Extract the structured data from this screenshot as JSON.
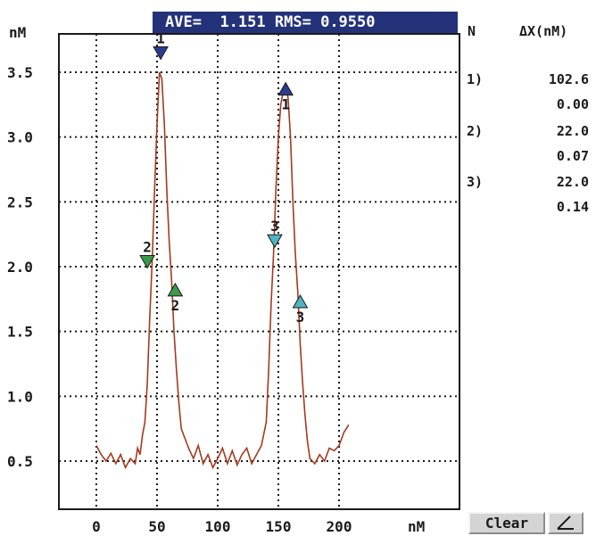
{
  "status": {
    "ave_label": "AVE=",
    "ave_value": "1.151",
    "rms_label": "RMS=",
    "rms_value": "0.9550"
  },
  "axes": {
    "y_unit": "nM",
    "x_unit": "nM",
    "y_ticks": [
      "3.5",
      "3.0",
      "2.5",
      "2.0",
      "1.5",
      "1.0",
      "0.5"
    ],
    "x_ticks": [
      "0",
      "50",
      "100",
      "150",
      "200"
    ]
  },
  "side_panel": {
    "n_header": "N",
    "dx_header": "ΔX(nM)",
    "rows": [
      {
        "n": "1)",
        "v1": "102.6",
        "v2": "0.00"
      },
      {
        "n": "2)",
        "v1": "22.0",
        "v2": "0.07"
      },
      {
        "n": "3)",
        "v1": "22.0",
        "v2": "0.14"
      }
    ]
  },
  "buttons": {
    "clear_label": "Clear",
    "angle_icon": "angle-icon"
  },
  "colors": {
    "trace": "#a33a20",
    "grid": "#1a1a1a",
    "header_bg": "#24327a",
    "marker_1": "#2b3b8f",
    "marker_2": "#3a9a4a",
    "marker_3": "#4fb3c2"
  },
  "chart_data": {
    "type": "line",
    "xlim": [
      0,
      210
    ],
    "ylim": [
      0.5,
      3.5
    ],
    "x": [
      0,
      4,
      8,
      12,
      16,
      20,
      24,
      28,
      32,
      34,
      36,
      38,
      40,
      42,
      44,
      46,
      48,
      50,
      52,
      54,
      56,
      58,
      60,
      62,
      64,
      66,
      68,
      70,
      72,
      76,
      80,
      84,
      88,
      92,
      96,
      100,
      104,
      108,
      112,
      116,
      120,
      124,
      128,
      132,
      136,
      140,
      142,
      144,
      146,
      148,
      150,
      152,
      154,
      156,
      158,
      160,
      162,
      164,
      166,
      168,
      170,
      172,
      174,
      176,
      180,
      184,
      188,
      192,
      196,
      200,
      204,
      208
    ],
    "y": [
      0.62,
      0.55,
      0.5,
      0.56,
      0.48,
      0.55,
      0.45,
      0.52,
      0.48,
      0.6,
      0.55,
      0.7,
      0.8,
      1.1,
      1.6,
      2.05,
      2.6,
      3.1,
      3.5,
      3.45,
      3.1,
      2.6,
      2.2,
      1.9,
      1.5,
      1.2,
      0.95,
      0.75,
      0.7,
      0.6,
      0.52,
      0.62,
      0.48,
      0.55,
      0.45,
      0.52,
      0.6,
      0.48,
      0.58,
      0.47,
      0.55,
      0.6,
      0.48,
      0.55,
      0.62,
      0.8,
      1.2,
      1.7,
      2.1,
      2.6,
      3.0,
      3.25,
      3.35,
      3.4,
      3.3,
      3.0,
      2.5,
      2.1,
      1.8,
      1.4,
      1.1,
      0.85,
      0.65,
      0.52,
      0.48,
      0.55,
      0.5,
      0.6,
      0.58,
      0.62,
      0.72,
      0.78
    ],
    "markers": [
      {
        "label": "1",
        "x": 53,
        "y": 3.6,
        "dir": "down",
        "color": "#2b3b8f"
      },
      {
        "label": "1",
        "x": 156,
        "y": 3.42,
        "dir": "up",
        "color": "#2b3b8f"
      },
      {
        "label": "2",
        "x": 42,
        "y": 1.99,
        "dir": "down",
        "color": "#3a9a4a"
      },
      {
        "label": "2",
        "x": 65,
        "y": 1.87,
        "dir": "up",
        "color": "#3a9a4a"
      },
      {
        "label": "3",
        "x": 147,
        "y": 2.15,
        "dir": "down",
        "color": "#4fb3c2"
      },
      {
        "label": "3",
        "x": 168,
        "y": 1.78,
        "dir": "up",
        "color": "#4fb3c2"
      }
    ]
  }
}
